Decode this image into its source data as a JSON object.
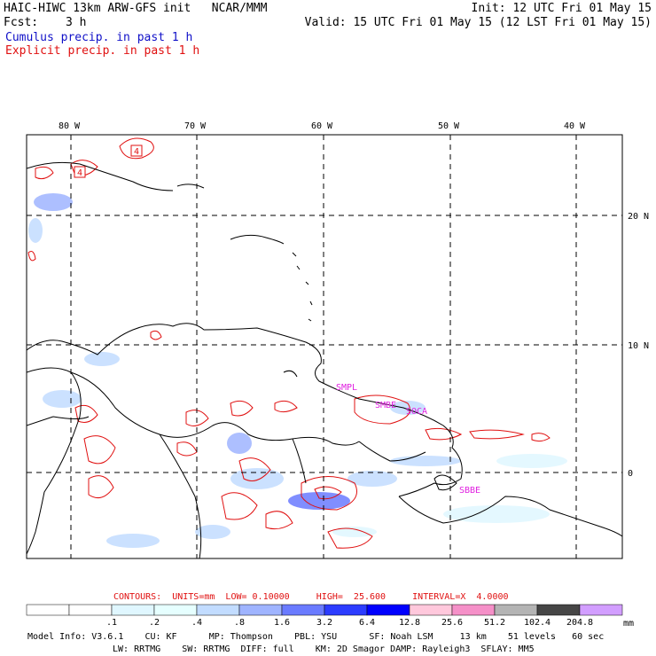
{
  "header": {
    "title": "HAIC-HIWC 13km ARW-GFS init   NCAR/MMM",
    "init": "Init: 12 UTC Fri 01 May 15",
    "fcst_label": "Fcst:",
    "fcst_value": "3 h",
    "valid": "Valid: 15 UTC Fri 01 May 15 (12 LST Fri 01 May 15)",
    "cumulus": "Cumulus precip. in past 1 h",
    "explicit": "Explicit precip. in past 1 h"
  },
  "map": {
    "lon_labels": [
      "80 W",
      "70 W",
      "60 W",
      "50 W",
      "40 W"
    ],
    "lat_labels": [
      "20 N",
      "10 N",
      "0"
    ],
    "stations": [
      "SMPL",
      "SMBE",
      "SOCA",
      "SBBE"
    ]
  },
  "contours": {
    "label": "CONTOURS:  UNITS=mm  LOW= 0.10000     HIGH=  25.600     INTERVAL=X  4.0000"
  },
  "colorbar": {
    "ticks": [
      ".1",
      ".2",
      ".4",
      ".8",
      "1.6",
      "3.2",
      "6.4",
      "12.8",
      "25.6",
      "51.2",
      "102.4",
      "204.8"
    ],
    "unit": "mm",
    "colors": [
      "#ffffff",
      "#ffffff",
      "#e0f7ff",
      "#e6ffff",
      "#c2dcff",
      "#9fb4ff",
      "#6a7bff",
      "#2c3cff",
      "#0000ff",
      "#ffc8dc",
      "#f590c8",
      "#b4b4b4",
      "#464646",
      "#d29eff"
    ]
  },
  "model_info": {
    "line1": "Model Info: V3.6.1    CU: KF      MP: Thompson    PBL: YSU      SF: Noah LSM     13 km    51 levels   60 sec",
    "line2": "LW: RRTMG    SW: RRTMG  DIFF: full    KM: 2D Smagor DAMP: Rayleigh3  SFLAY: MM5"
  }
}
